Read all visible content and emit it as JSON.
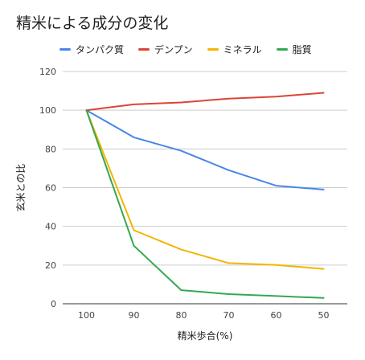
{
  "chart_data": {
    "type": "line",
    "title": "精米による成分の変化",
    "xlabel": "精米歩合(%)",
    "ylabel": "玄米との比",
    "categories": [
      "100",
      "90",
      "80",
      "70",
      "60",
      "50"
    ],
    "ylim": [
      0,
      120
    ],
    "yticks": [
      0,
      20,
      40,
      60,
      80,
      100,
      120
    ],
    "grid": true,
    "legend_position": "top",
    "series": [
      {
        "name": "タンパク質",
        "color": "#4a86e8",
        "values": [
          100,
          86,
          79,
          69,
          61,
          59
        ]
      },
      {
        "name": "デンプン",
        "color": "#db4437",
        "values": [
          100,
          103,
          104,
          106,
          107,
          109
        ]
      },
      {
        "name": "ミネラル",
        "color": "#f4b400",
        "values": [
          100,
          38,
          28,
          21,
          20,
          18
        ]
      },
      {
        "name": "脂質",
        "color": "#34a853",
        "values": [
          100,
          30,
          7,
          5,
          4,
          3
        ]
      }
    ]
  }
}
